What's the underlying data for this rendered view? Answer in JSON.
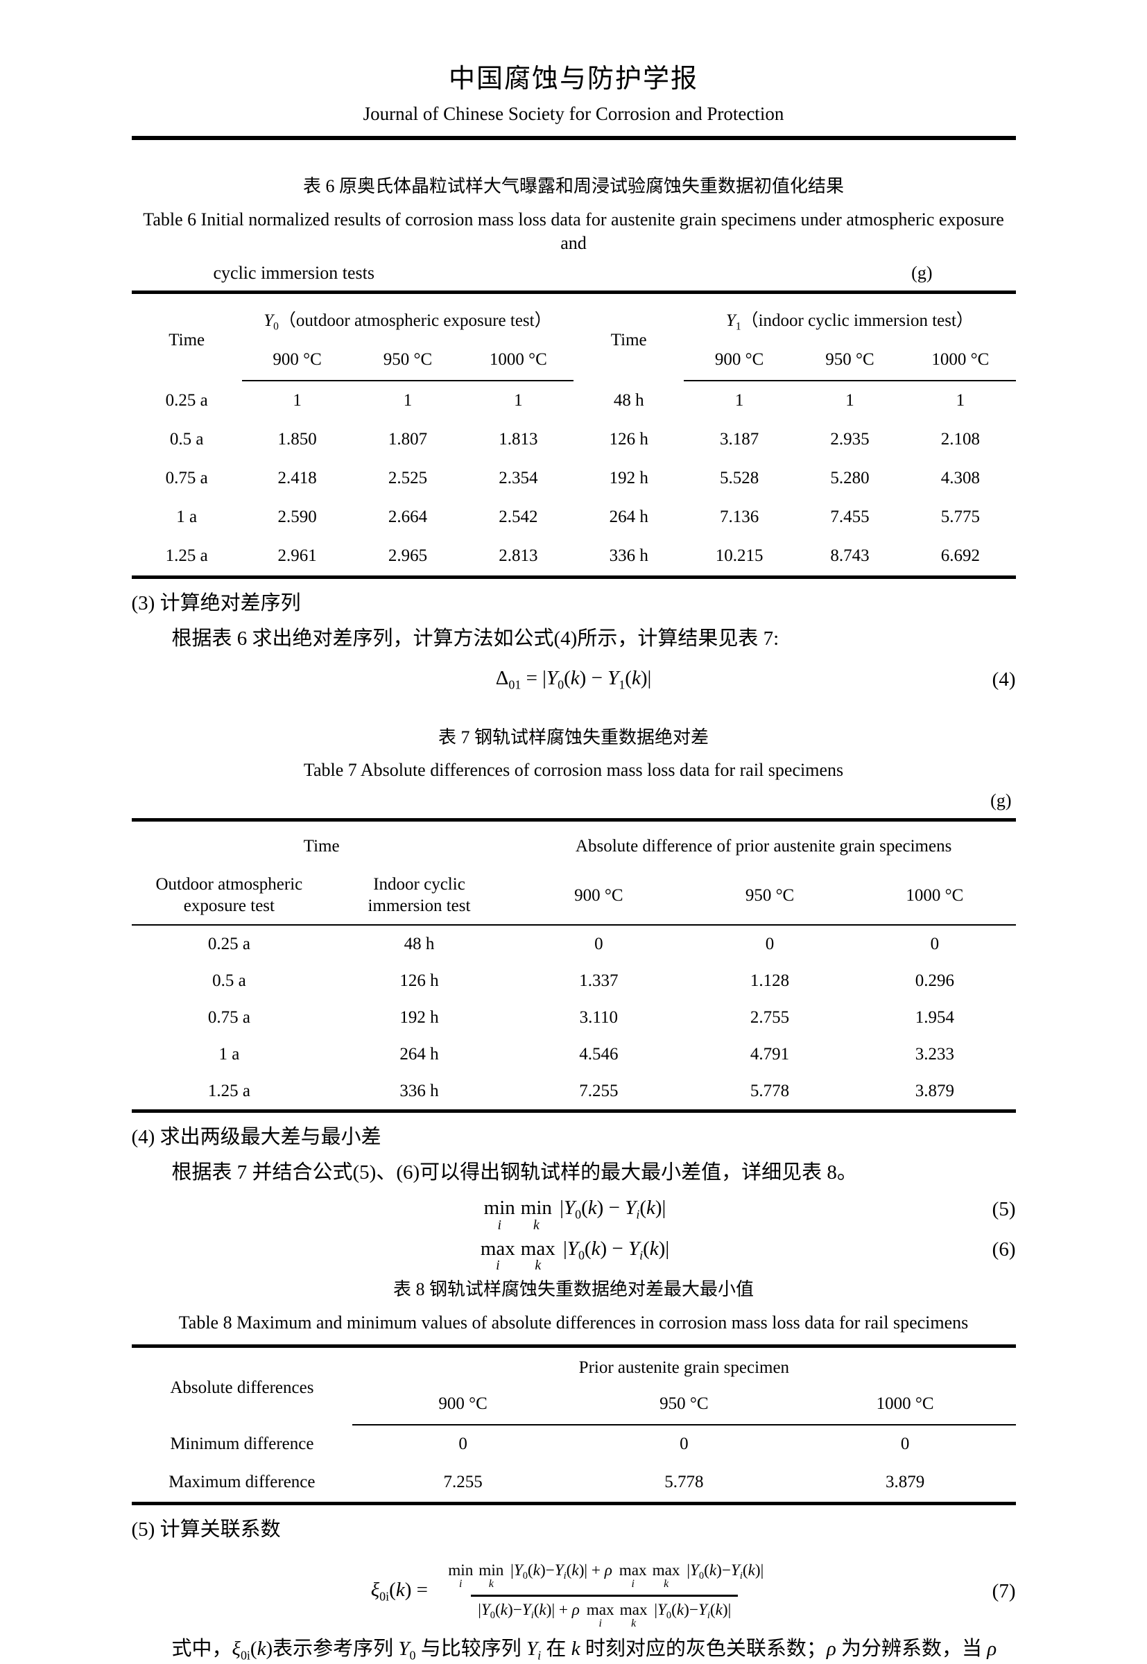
{
  "journal": {
    "title_zh": "中国腐蚀与防护学报",
    "title_en": "Journal of Chinese Society for Corrosion and Protection"
  },
  "table6": {
    "caption_zh": "表 6  原奥氏体晶粒试样大气曝露和周浸试验腐蚀失重数据初值化结果",
    "caption_en_1": "Table 6 Initial normalized results of corrosion mass loss data for austenite grain specimens under atmospheric exposure and",
    "caption_en_2": "cyclic immersion tests",
    "unit": "(g)",
    "time_label_left": "Time",
    "time_label_right": "Time",
    "group_left": {
      "base": "Y",
      "sub": "0",
      "desc": "（outdoor atmospheric exposure test）"
    },
    "group_right": {
      "base": "Y",
      "sub": "1",
      "desc": "（indoor cyclic immersion test）"
    },
    "temps_left": [
      "900 °C",
      "950 °C",
      "1000 °C"
    ],
    "temps_right": [
      "900 °C",
      "950 °C",
      "1000 °C"
    ],
    "rows": [
      [
        "0.25 a",
        "1",
        "1",
        "1",
        "48 h",
        "1",
        "1",
        "1"
      ],
      [
        "0.5 a",
        "1.850",
        "1.807",
        "1.813",
        "126 h",
        "3.187",
        "2.935",
        "2.108"
      ],
      [
        "0.75 a",
        "2.418",
        "2.525",
        "2.354",
        "192 h",
        "5.528",
        "5.280",
        "4.308"
      ],
      [
        "1 a",
        "2.590",
        "2.664",
        "2.542",
        "264 h",
        "7.136",
        "7.455",
        "5.775"
      ],
      [
        "1.25 a",
        "2.961",
        "2.965",
        "2.813",
        "336 h",
        "10.215",
        "8.743",
        "6.692"
      ]
    ]
  },
  "section3": {
    "heading": "(3) 计算绝对差序列",
    "body": "根据表 6 求出绝对差序列，计算方法如公式(4)所示，计算结果见表 7:"
  },
  "eq4": {
    "number": "(4)",
    "tokens": [
      [
        "t",
        "Δ"
      ],
      [
        "s",
        "01"
      ],
      [
        "t",
        " = |"
      ],
      [
        "i",
        "Y"
      ],
      [
        "s",
        "0"
      ],
      [
        "t",
        "("
      ],
      [
        "i",
        "k"
      ],
      [
        "t",
        ") − "
      ],
      [
        "i",
        "Y"
      ],
      [
        "s",
        "1"
      ],
      [
        "t",
        "("
      ],
      [
        "i",
        "k"
      ],
      [
        "t",
        ")|"
      ]
    ]
  },
  "table7": {
    "caption_zh": "表 7  钢轨试样腐蚀失重数据绝对差",
    "caption_en": "Table 7 Absolute differences of corrosion mass loss data for rail specimens",
    "unit": "(g)",
    "time_group": "Time",
    "abs_group": "Absolute difference of prior austenite grain specimens",
    "sub_headers": [
      "Outdoor atmospheric exposure test",
      "Indoor cyclic immersion test",
      "900 °C",
      "950 °C",
      "1000 °C"
    ],
    "rows": [
      [
        "0.25 a",
        "48 h",
        "0",
        "0",
        "0"
      ],
      [
        "0.5 a",
        "126 h",
        "1.337",
        "1.128",
        "0.296"
      ],
      [
        "0.75 a",
        "192 h",
        "3.110",
        "2.755",
        "1.954"
      ],
      [
        "1 a",
        "264 h",
        "4.546",
        "4.791",
        "3.233"
      ],
      [
        "1.25 a",
        "336 h",
        "7.255",
        "5.778",
        "3.879"
      ]
    ]
  },
  "section4": {
    "heading": "(4) 求出两级最大差与最小差",
    "body": "根据表 7 并结合公式(5)、(6)可以得出钢轨试样的最大最小差值，详细见表 8。"
  },
  "eq5": {
    "number": "(5)",
    "tokens": [
      [
        "uo",
        "min",
        "i"
      ],
      [
        "uo",
        "min",
        "k"
      ],
      [
        "t",
        " |"
      ],
      [
        "i",
        "Y"
      ],
      [
        "s",
        "0"
      ],
      [
        "t",
        "("
      ],
      [
        "i",
        "k"
      ],
      [
        "t",
        ") − "
      ],
      [
        "i",
        "Y"
      ],
      [
        "si",
        "i"
      ],
      [
        "t",
        "("
      ],
      [
        "i",
        "k"
      ],
      [
        "t",
        ")|"
      ]
    ]
  },
  "eq6": {
    "number": "(6)",
    "tokens": [
      [
        "uo",
        "max",
        "i"
      ],
      [
        "uo",
        "max",
        "k"
      ],
      [
        "t",
        " |"
      ],
      [
        "i",
        "Y"
      ],
      [
        "s",
        "0"
      ],
      [
        "t",
        "("
      ],
      [
        "i",
        "k"
      ],
      [
        "t",
        ") − "
      ],
      [
        "i",
        "Y"
      ],
      [
        "si",
        "i"
      ],
      [
        "t",
        "("
      ],
      [
        "i",
        "k"
      ],
      [
        "t",
        ")|"
      ]
    ]
  },
  "table8": {
    "caption_zh": "表 8  钢轨试样腐蚀失重数据绝对差最大最小值",
    "caption_en": "Table 8 Maximum and minimum values of absolute differences in corrosion mass loss data for rail specimens",
    "col1_header": "Absolute differences",
    "group_header": "Prior austenite grain specimen",
    "temps": [
      "900 °C",
      "950 °C",
      "1000 °C"
    ],
    "rows": [
      [
        "Minimum difference",
        "0",
        "0",
        "0"
      ],
      [
        "Maximum difference",
        "7.255",
        "5.778",
        "3.879"
      ]
    ]
  },
  "section5": {
    "heading": "(5) 计算关联系数"
  },
  "eq7": {
    "number": "(7)",
    "tokens": [
      [
        "i",
        "ξ"
      ],
      [
        "s",
        "0i"
      ],
      [
        "t",
        "("
      ],
      [
        "i",
        "k"
      ],
      [
        "t",
        ") = "
      ],
      [
        "frac",
        [
          [
            "uo",
            "min",
            "i"
          ],
          [
            "uo",
            "min",
            "k"
          ],
          [
            "t",
            " |"
          ],
          [
            "i",
            "Y"
          ],
          [
            "s",
            "0"
          ],
          [
            "t",
            "("
          ],
          [
            "i",
            "k"
          ],
          [
            "t",
            ")−"
          ],
          [
            "i",
            "Y"
          ],
          [
            "si",
            "i"
          ],
          [
            "t",
            "("
          ],
          [
            "i",
            "k"
          ],
          [
            "t",
            ")| + "
          ],
          [
            "i",
            "ρ"
          ],
          [
            "t",
            " "
          ],
          [
            "uo",
            "max",
            "i"
          ],
          [
            "uo",
            "max",
            "k"
          ],
          [
            "t",
            " |"
          ],
          [
            "i",
            "Y"
          ],
          [
            "s",
            "0"
          ],
          [
            "t",
            "("
          ],
          [
            "i",
            "k"
          ],
          [
            "t",
            ")−"
          ],
          [
            "i",
            "Y"
          ],
          [
            "si",
            "i"
          ],
          [
            "t",
            "("
          ],
          [
            "i",
            "k"
          ],
          [
            "t",
            ")|"
          ]
        ],
        [
          [
            "t",
            "|"
          ],
          [
            "i",
            "Y"
          ],
          [
            "s",
            "0"
          ],
          [
            "t",
            "("
          ],
          [
            "i",
            "k"
          ],
          [
            "t",
            ")−"
          ],
          [
            "i",
            "Y"
          ],
          [
            "si",
            "i"
          ],
          [
            "t",
            "("
          ],
          [
            "i",
            "k"
          ],
          [
            "t",
            ")| + "
          ],
          [
            "i",
            "ρ"
          ],
          [
            "t",
            " "
          ],
          [
            "uo",
            "max",
            "i"
          ],
          [
            "uo",
            "max",
            "k"
          ],
          [
            "t",
            " |"
          ],
          [
            "i",
            "Y"
          ],
          [
            "s",
            "0"
          ],
          [
            "t",
            "("
          ],
          [
            "i",
            "k"
          ],
          [
            "t",
            ")−"
          ],
          [
            "i",
            "Y"
          ],
          [
            "si",
            "i"
          ],
          [
            "t",
            "("
          ],
          [
            "i",
            "k"
          ],
          [
            "t",
            ")|"
          ]
        ]
      ]
    ]
  },
  "closing": {
    "tokens": [
      [
        "t",
        "式中，"
      ],
      [
        "i",
        "ξ"
      ],
      [
        "s",
        "0i"
      ],
      [
        "t",
        "("
      ],
      [
        "i",
        "k"
      ],
      [
        "t",
        ")表示参考序列 "
      ],
      [
        "i",
        "Y"
      ],
      [
        "s",
        "0"
      ],
      [
        "t",
        " 与比较序列 "
      ],
      [
        "i",
        "Y"
      ],
      [
        "si",
        "i"
      ],
      [
        "t",
        " 在 "
      ],
      [
        "i",
        "k"
      ],
      [
        "t",
        " 时刻对应的灰色关联系数；"
      ],
      [
        "i",
        "ρ"
      ],
      [
        "t",
        " 为分辨系数，当 "
      ],
      [
        "i",
        "ρ"
      ]
    ]
  }
}
